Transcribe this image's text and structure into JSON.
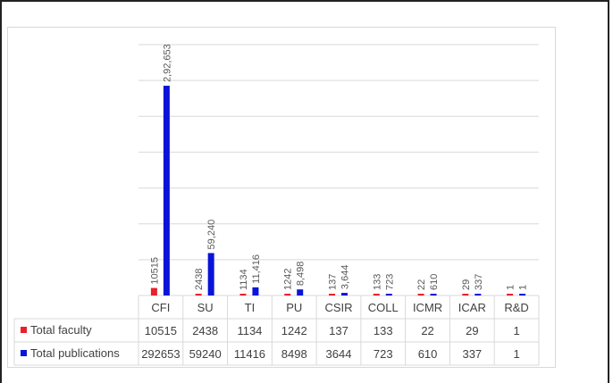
{
  "chart_data": {
    "type": "bar",
    "categories": [
      "CFI",
      "SU",
      "TI",
      "PU",
      "CSIR",
      "COLL",
      "ICMR",
      "ICAR",
      "R&D"
    ],
    "series": [
      {
        "name": "Total faculty",
        "color": "#e8212b",
        "values": [
          10515,
          2438,
          1134,
          1242,
          137,
          133,
          22,
          29,
          1
        ],
        "labels": [
          "10515",
          "2438",
          "1134",
          "1242",
          "137",
          "133",
          "22",
          "29",
          "1"
        ],
        "table_values": [
          "10515",
          "2438",
          "1134",
          "1242",
          "137",
          "133",
          "22",
          "29",
          "1"
        ]
      },
      {
        "name": "Total publications",
        "color": "#0a14d8",
        "values": [
          292653,
          59240,
          11416,
          8498,
          3644,
          723,
          610,
          337,
          1
        ],
        "labels": [
          "2,92,653",
          "59,240",
          "11,416",
          "8,498",
          "3,644",
          "723",
          "610",
          "337",
          "1"
        ],
        "table_values": [
          "292653",
          "59240",
          "11416",
          "8498",
          "3644",
          "723",
          "610",
          "337",
          "1"
        ]
      }
    ],
    "ylim": [
      0,
      350000
    ],
    "y_gridline_step": 50000,
    "y_axis_labels_shown": false,
    "grid": true,
    "data_table": true
  }
}
